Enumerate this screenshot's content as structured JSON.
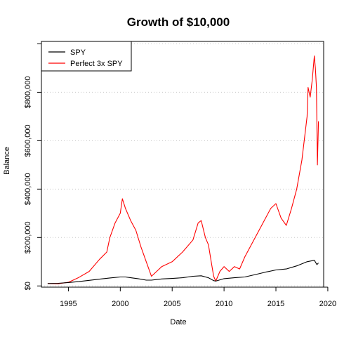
{
  "chart_data": {
    "type": "line",
    "title": "Growth of $10,000",
    "xlabel": "Date",
    "ylabel": "Balance",
    "xlim": [
      1992.4,
      2019.6
    ],
    "ylim": [
      -5000,
      1010000
    ],
    "x_ticks": [
      1995,
      2000,
      2005,
      2010,
      2015,
      2020
    ],
    "y_ticks": [
      0,
      200000,
      400000,
      600000,
      800000,
      1000000
    ],
    "y_tick_labels": [
      "$0",
      "$200,000",
      "$400,000",
      "$600,000",
      "$800,000",
      ""
    ],
    "grid": {
      "horizontal": true,
      "style": "dotted"
    },
    "legend_position": "top-left",
    "series": [
      {
        "name": "SPY",
        "color": "#000000",
        "x": [
          1993.0,
          1994.0,
          1995.0,
          1996.0,
          1997.0,
          1998.0,
          1999.0,
          2000.0,
          2000.5,
          2001.0,
          2001.7,
          2002.5,
          2003.0,
          2004.0,
          2005.0,
          2006.0,
          2007.0,
          2007.8,
          2008.5,
          2009.0,
          2009.2,
          2010.0,
          2011.0,
          2012.0,
          2013.0,
          2014.0,
          2015.0,
          2016.0,
          2017.0,
          2018.0,
          2018.7,
          2018.95,
          2019.1
        ],
        "y": [
          10000,
          11000,
          14000,
          18000,
          23000,
          28000,
          33000,
          37000,
          37000,
          34000,
          30000,
          24000,
          24000,
          29000,
          31000,
          34000,
          40000,
          42000,
          34000,
          22000,
          20000,
          30000,
          34000,
          37000,
          47000,
          57000,
          66000,
          70000,
          83000,
          100000,
          106000,
          88000,
          95000
        ]
      },
      {
        "name": "Perfect 3x SPY",
        "color": "#ff0000",
        "x": [
          1993.0,
          1994.0,
          1995.0,
          1996.0,
          1997.0,
          1998.0,
          1998.7,
          1999.0,
          1999.5,
          2000.0,
          2000.2,
          2000.5,
          2001.0,
          2001.5,
          2002.0,
          2002.5,
          2003.0,
          2003.5,
          2004.0,
          2005.0,
          2006.0,
          2007.0,
          2007.5,
          2007.8,
          2008.2,
          2008.5,
          2008.8,
          2009.0,
          2009.2,
          2009.6,
          2010.0,
          2010.5,
          2011.0,
          2011.5,
          2012.0,
          2013.0,
          2014.0,
          2014.5,
          2015.0,
          2015.5,
          2016.0,
          2016.5,
          2017.0,
          2017.5,
          2018.0,
          2018.1,
          2018.3,
          2018.5,
          2018.7,
          2018.8,
          2018.9,
          2019.0,
          2019.1
        ],
        "y": [
          10000,
          9000,
          15000,
          35000,
          60000,
          110000,
          140000,
          200000,
          260000,
          300000,
          360000,
          320000,
          270000,
          230000,
          160000,
          100000,
          40000,
          60000,
          80000,
          100000,
          140000,
          190000,
          260000,
          270000,
          200000,
          170000,
          90000,
          40000,
          20000,
          60000,
          80000,
          60000,
          80000,
          70000,
          120000,
          200000,
          280000,
          320000,
          340000,
          280000,
          250000,
          320000,
          400000,
          520000,
          700000,
          820000,
          780000,
          850000,
          950000,
          900000,
          820000,
          500000,
          680000
        ]
      }
    ]
  }
}
